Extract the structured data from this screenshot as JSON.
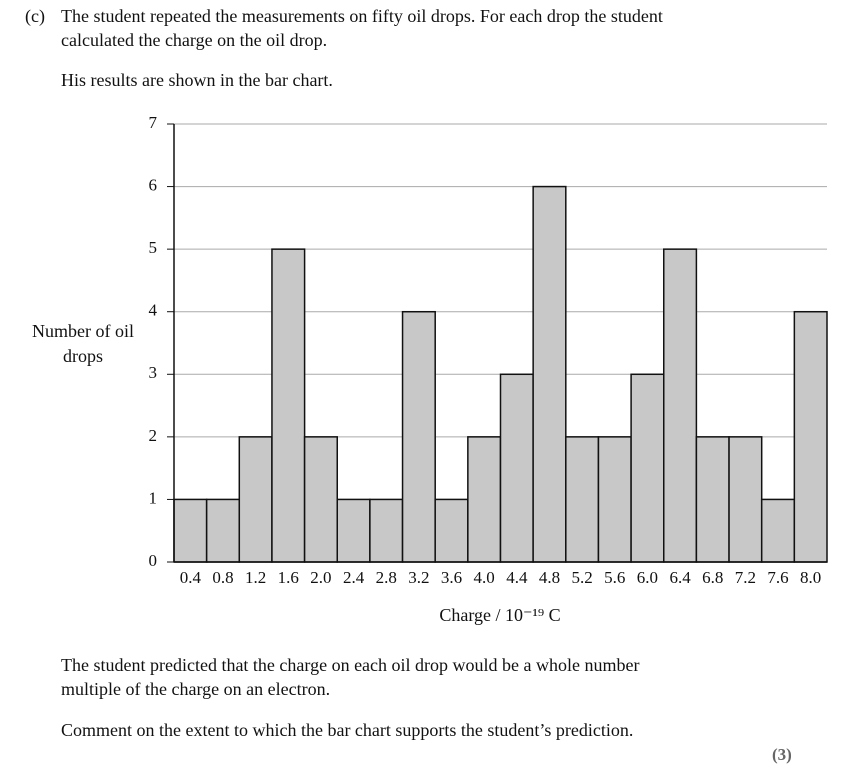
{
  "question": {
    "label": "(c)",
    "intro": [
      "The student repeated the measurements on fifty oil drops. For each drop the student",
      "calculated the charge on the oil drop."
    ],
    "lead": "His results are shown in the bar chart.",
    "prediction": [
      "The student predicted that the charge on each oil drop would be a whole number",
      "multiple of the charge on an electron."
    ],
    "task": "Comment on the extent to which the bar chart supports the student’s prediction.",
    "marks": "(3)"
  },
  "chart_data": {
    "type": "bar",
    "y_label": "Number of oil drops",
    "x_label": "Charge / 10⁻¹⁹ C",
    "categories": [
      "0.4",
      "0.8",
      "1.2",
      "1.6",
      "2.0",
      "2.4",
      "2.8",
      "3.2",
      "3.6",
      "4.0",
      "4.4",
      "4.8",
      "5.2",
      "5.6",
      "6.0",
      "6.4",
      "6.8",
      "7.2",
      "7.6",
      "8.0"
    ],
    "values": [
      1,
      1,
      2,
      5,
      2,
      1,
      1,
      4,
      1,
      2,
      3,
      6,
      2,
      2,
      3,
      5,
      2,
      2,
      1,
      4
    ],
    "color": "#c8c8c8",
    "ylim": [
      0,
      7
    ],
    "yticks": [
      0,
      1,
      2,
      3,
      4,
      5,
      6,
      7
    ],
    "grid": true
  }
}
